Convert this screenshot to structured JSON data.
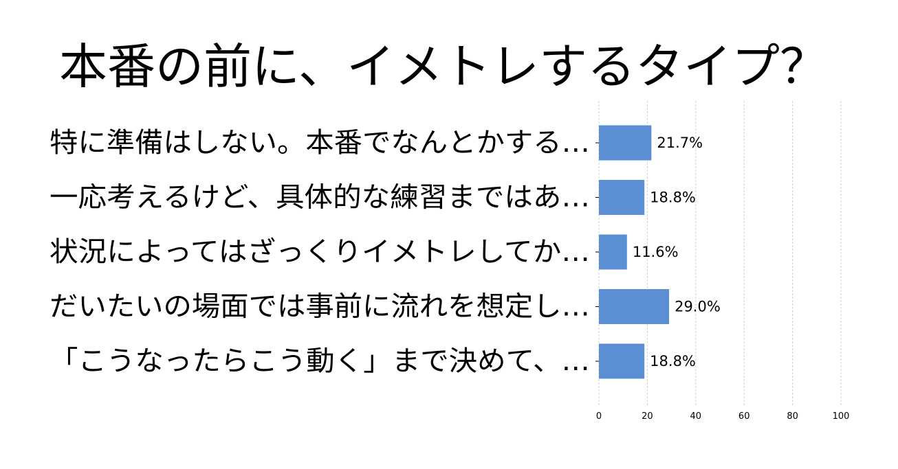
{
  "chart_data": {
    "type": "bar",
    "orientation": "horizontal",
    "title": "本番の前に、イメトレするタイプ？",
    "categories": [
      "特に準備はしない。本番でなんとかする…",
      "一応考えるけど、具体的な練習まではあ…",
      "状況によってはざっくりイメトレしてか…",
      "だいたいの場面では事前に流れを想定し…",
      "「こうなったらこう動く」まで決めて、…"
    ],
    "values": [
      21.7,
      18.8,
      11.6,
      29.0,
      18.8
    ],
    "value_labels": [
      "21.7%",
      "18.8%",
      "11.6%",
      "29.0%",
      "18.8%"
    ],
    "xlim": [
      0,
      100
    ],
    "xticks": [
      0,
      20,
      40,
      60,
      80,
      100
    ],
    "xtick_labels": [
      "0",
      "20",
      "40",
      "60",
      "80",
      "100"
    ],
    "xlabel": "",
    "ylabel": "",
    "grid": true,
    "bar_color": "#5b8fd3",
    "grid_color": "#d0d0d0"
  }
}
